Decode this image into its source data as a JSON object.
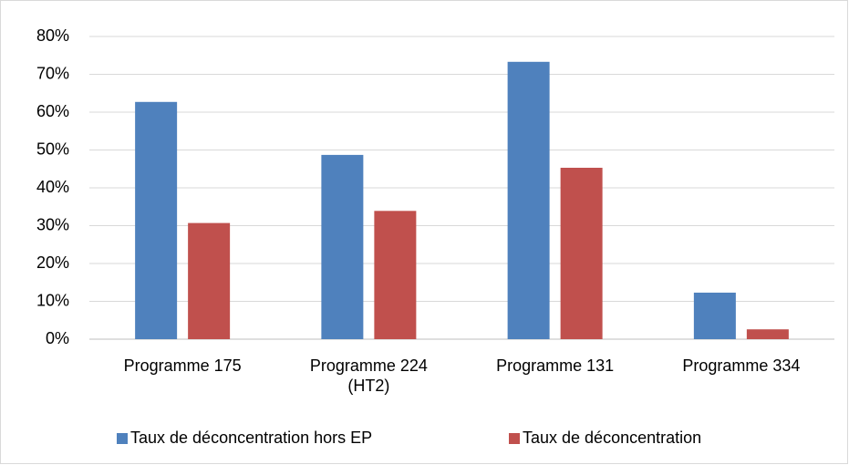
{
  "chart_data": {
    "type": "bar",
    "categories": [
      "Programme 175",
      "Programme 224\n(HT2)",
      "Programme 131",
      "Programme 334"
    ],
    "series": [
      {
        "name": "Taux de déconcentration hors EP",
        "color": "#4f81bd",
        "values": [
          62.7,
          48.7,
          73.3,
          12.3
        ]
      },
      {
        "name": "Taux de déconcentration",
        "color": "#c0504d",
        "values": [
          30.7,
          33.9,
          45.3,
          2.6
        ]
      }
    ],
    "ylim": [
      0,
      80
    ],
    "yticks": [
      {
        "value": 0,
        "label": "0%"
      },
      {
        "value": 10,
        "label": "10%"
      },
      {
        "value": 20,
        "label": "20%"
      },
      {
        "value": 30,
        "label": "30%"
      },
      {
        "value": 40,
        "label": "40%"
      },
      {
        "value": 50,
        "label": "50%"
      },
      {
        "value": 60,
        "label": "60%"
      },
      {
        "value": 70,
        "label": "70%"
      },
      {
        "value": 80,
        "label": "80%"
      }
    ],
    "grid": true,
    "legend": "bottom"
  }
}
